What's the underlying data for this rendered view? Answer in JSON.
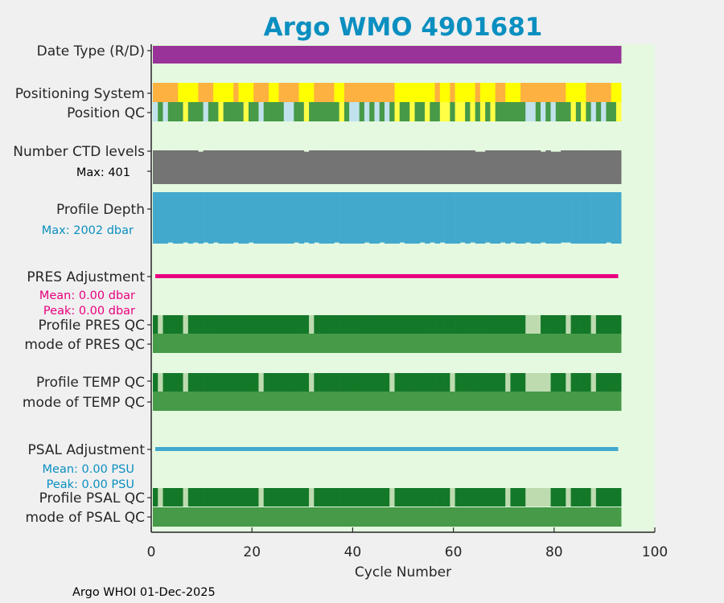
{
  "chart_data": {
    "type": "heatmap",
    "title": "Argo WMO 4901681",
    "xlabel": "Cycle Number",
    "xlim": [
      0,
      100
    ],
    "xticks": [
      "0",
      "20",
      "40",
      "60",
      "80",
      "100"
    ],
    "n_cycles": 93,
    "footer": "Argo WHOI 01-Dec-2025",
    "colors": {
      "date_type": "#993399",
      "pos_orange": "#fdb140",
      "pos_yellow": "#ffff00",
      "qc_green": "#469a48",
      "qc_blue": "#c1e2ec",
      "qc_yellow": "#ffff44",
      "ctd": "#747474",
      "depth": "#42a9cd",
      "pres_adj": "#e8007f",
      "psal_adj": "#42a9cd",
      "profile_good": "#147829",
      "profile_partial": "#bedbb0",
      "mode": "#469a48",
      "plot_bg": "#e5f9e0"
    },
    "rows": {
      "date_type": {
        "label": "Date Type (R/D)",
        "value": "D"
      },
      "positioning_system": {
        "label": "Positioning System",
        "runs": [
          [
            "orange",
            5
          ],
          [
            "yellow",
            4
          ],
          [
            "orange",
            3
          ],
          [
            "yellow",
            4
          ],
          [
            "orange",
            1
          ],
          [
            "yellow",
            3
          ],
          [
            "orange",
            3
          ],
          [
            "yellow",
            2
          ],
          [
            "orange",
            4
          ],
          [
            "yellow",
            3
          ],
          [
            "orange",
            4
          ],
          [
            "yellow",
            2
          ],
          [
            "orange",
            10
          ],
          [
            "yellow",
            8
          ],
          [
            "orange",
            1
          ],
          [
            "yellow",
            2
          ],
          [
            "orange",
            1
          ],
          [
            "yellow",
            4
          ],
          [
            "orange",
            1
          ],
          [
            "yellow",
            3
          ],
          [
            "orange",
            2
          ],
          [
            "yellow",
            3
          ],
          [
            "orange",
            9
          ],
          [
            "yellow",
            4
          ],
          [
            "orange",
            5
          ],
          [
            "yellow",
            2
          ]
        ]
      },
      "position_qc": {
        "label": "Position QC",
        "runs": [
          [
            "blue",
            1
          ],
          [
            "green",
            1
          ],
          [
            "blue",
            1
          ],
          [
            "green",
            3
          ],
          [
            "yellow",
            1
          ],
          [
            "green",
            3
          ],
          [
            "blue",
            1
          ],
          [
            "green",
            2
          ],
          [
            "yellow",
            1
          ],
          [
            "green",
            4
          ],
          [
            "yellow",
            1
          ],
          [
            "green",
            2
          ],
          [
            "blue",
            1
          ],
          [
            "green",
            4
          ],
          [
            "blue",
            2
          ],
          [
            "green",
            2
          ],
          [
            "yellow",
            1
          ],
          [
            "green",
            6
          ],
          [
            "yellow",
            1
          ],
          [
            "green",
            1
          ],
          [
            "blue",
            2
          ],
          [
            "green",
            1
          ],
          [
            "blue",
            1
          ],
          [
            "green",
            1
          ],
          [
            "blue",
            1
          ],
          [
            "green",
            1
          ],
          [
            "blue",
            1
          ],
          [
            "green",
            1
          ],
          [
            "yellow",
            1
          ],
          [
            "green",
            2
          ],
          [
            "yellow",
            1
          ],
          [
            "green",
            2
          ],
          [
            "yellow",
            1
          ],
          [
            "green",
            2
          ],
          [
            "yellow",
            2
          ],
          [
            "green",
            1
          ],
          [
            "yellow",
            2
          ],
          [
            "green",
            1
          ],
          [
            "yellow",
            1
          ],
          [
            "green",
            1
          ],
          [
            "yellow",
            1
          ],
          [
            "green",
            1
          ],
          [
            "yellow",
            1
          ],
          [
            "green",
            6
          ],
          [
            "blue",
            2
          ],
          [
            "green",
            1
          ],
          [
            "blue",
            1
          ],
          [
            "green",
            1
          ],
          [
            "blue",
            1
          ],
          [
            "green",
            3
          ],
          [
            "yellow",
            1
          ],
          [
            "green",
            1
          ],
          [
            "yellow",
            1
          ],
          [
            "green",
            1
          ],
          [
            "blue",
            1
          ],
          [
            "green",
            1
          ],
          [
            "blue",
            1
          ],
          [
            "green",
            2
          ],
          [
            "yellow",
            1
          ]
        ]
      },
      "ctd_levels": {
        "label": "Number CTD levels",
        "max_text": "Max: 401",
        "max": 401,
        "default": 401,
        "exceptions": {
          "10": 385,
          "31": 385,
          "65": 385,
          "66": 385,
          "78": 385,
          "80": 385,
          "81": 385
        }
      },
      "profile_depth": {
        "label": "Profile Depth",
        "max_text": "Max: 2002 dbar",
        "max": 2002,
        "default": 2002,
        "shallower_cycles": [
          4,
          7,
          9,
          11,
          13,
          17,
          20,
          29,
          31,
          33,
          37,
          43,
          46,
          50,
          54,
          56,
          58,
          62,
          64,
          67,
          70,
          72,
          75,
          78,
          82,
          83,
          91
        ],
        "shallower_value": 1960
      },
      "pres_adjustment": {
        "label": "PRES Adjustment",
        "mean": "Mean: 0.00 dbar",
        "peak": "Peak: 0.00 dbar"
      },
      "profile_pres_qc": {
        "label": "Profile PRES QC",
        "partial_cycles": [
          2,
          7,
          32,
          75,
          76,
          77,
          83,
          88
        ]
      },
      "mode_pres_qc": {
        "label": "mode of PRES QC"
      },
      "profile_temp_qc": {
        "label": "Profile TEMP QC",
        "partial_cycles": [
          2,
          7,
          22,
          32,
          48,
          60,
          71,
          75,
          76,
          77,
          78,
          79,
          83,
          88
        ]
      },
      "mode_temp_qc": {
        "label": "mode of TEMP QC"
      },
      "psal_adjustment": {
        "label": "PSAL Adjustment",
        "mean": "Mean: 0.00 PSU",
        "peak": "Peak: 0.00 PSU"
      },
      "profile_psal_qc": {
        "label": "Profile PSAL QC",
        "partial_cycles": [
          2,
          7,
          22,
          32,
          48,
          60,
          71,
          75,
          76,
          77,
          78,
          79,
          83,
          88
        ]
      },
      "mode_psal_qc": {
        "label": "mode of PSAL QC"
      }
    }
  }
}
